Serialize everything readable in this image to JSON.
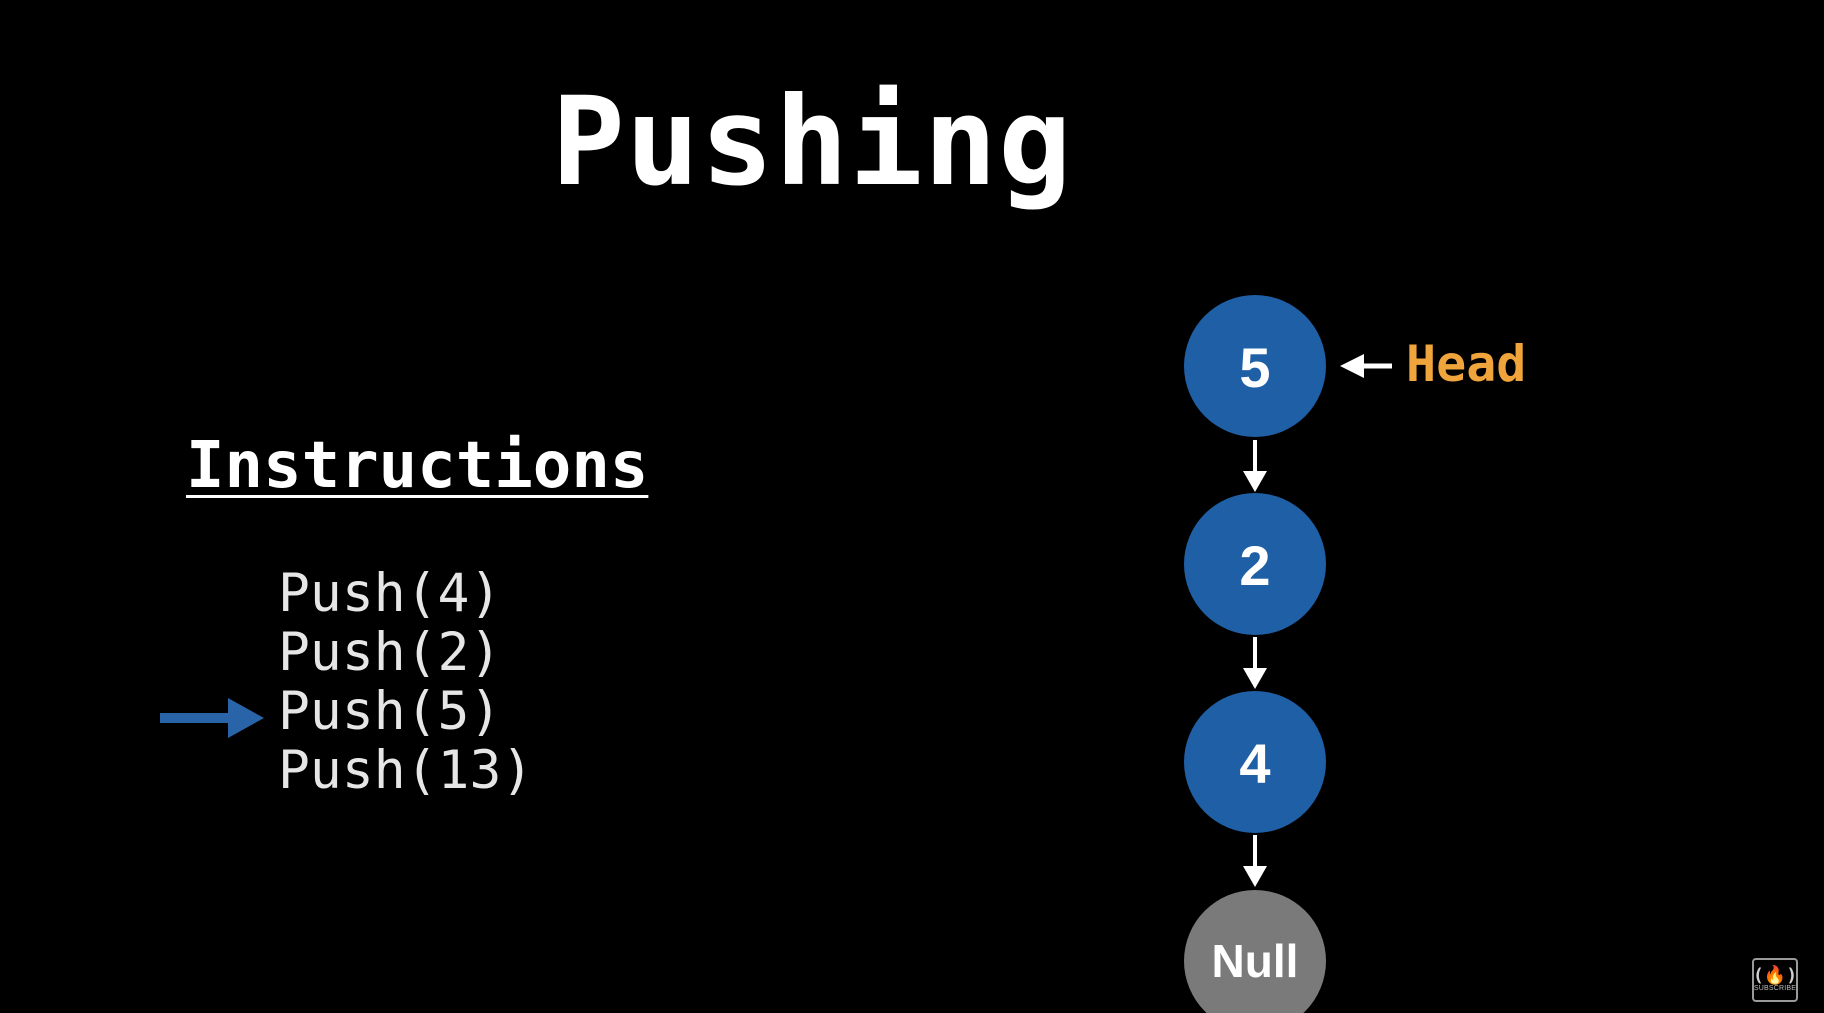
{
  "title": "Pushing",
  "instructions": {
    "heading": "Instructions",
    "items": [
      "Push(4)",
      "Push(2)",
      "Push(5)",
      "Push(13)"
    ],
    "current_index": 2
  },
  "stack": {
    "nodes": [
      "5",
      "2",
      "4"
    ],
    "terminal": "Null",
    "head_label": "Head"
  },
  "colors": {
    "background": "#000000",
    "node_fill": "#1f5fa5",
    "null_fill": "#7a7a7a",
    "head_label": "#f0a43c",
    "pointer_arrow": "#2a64a8"
  },
  "logo": {
    "mark": "(🔥)",
    "caption": "SUBSCRIBE"
  }
}
